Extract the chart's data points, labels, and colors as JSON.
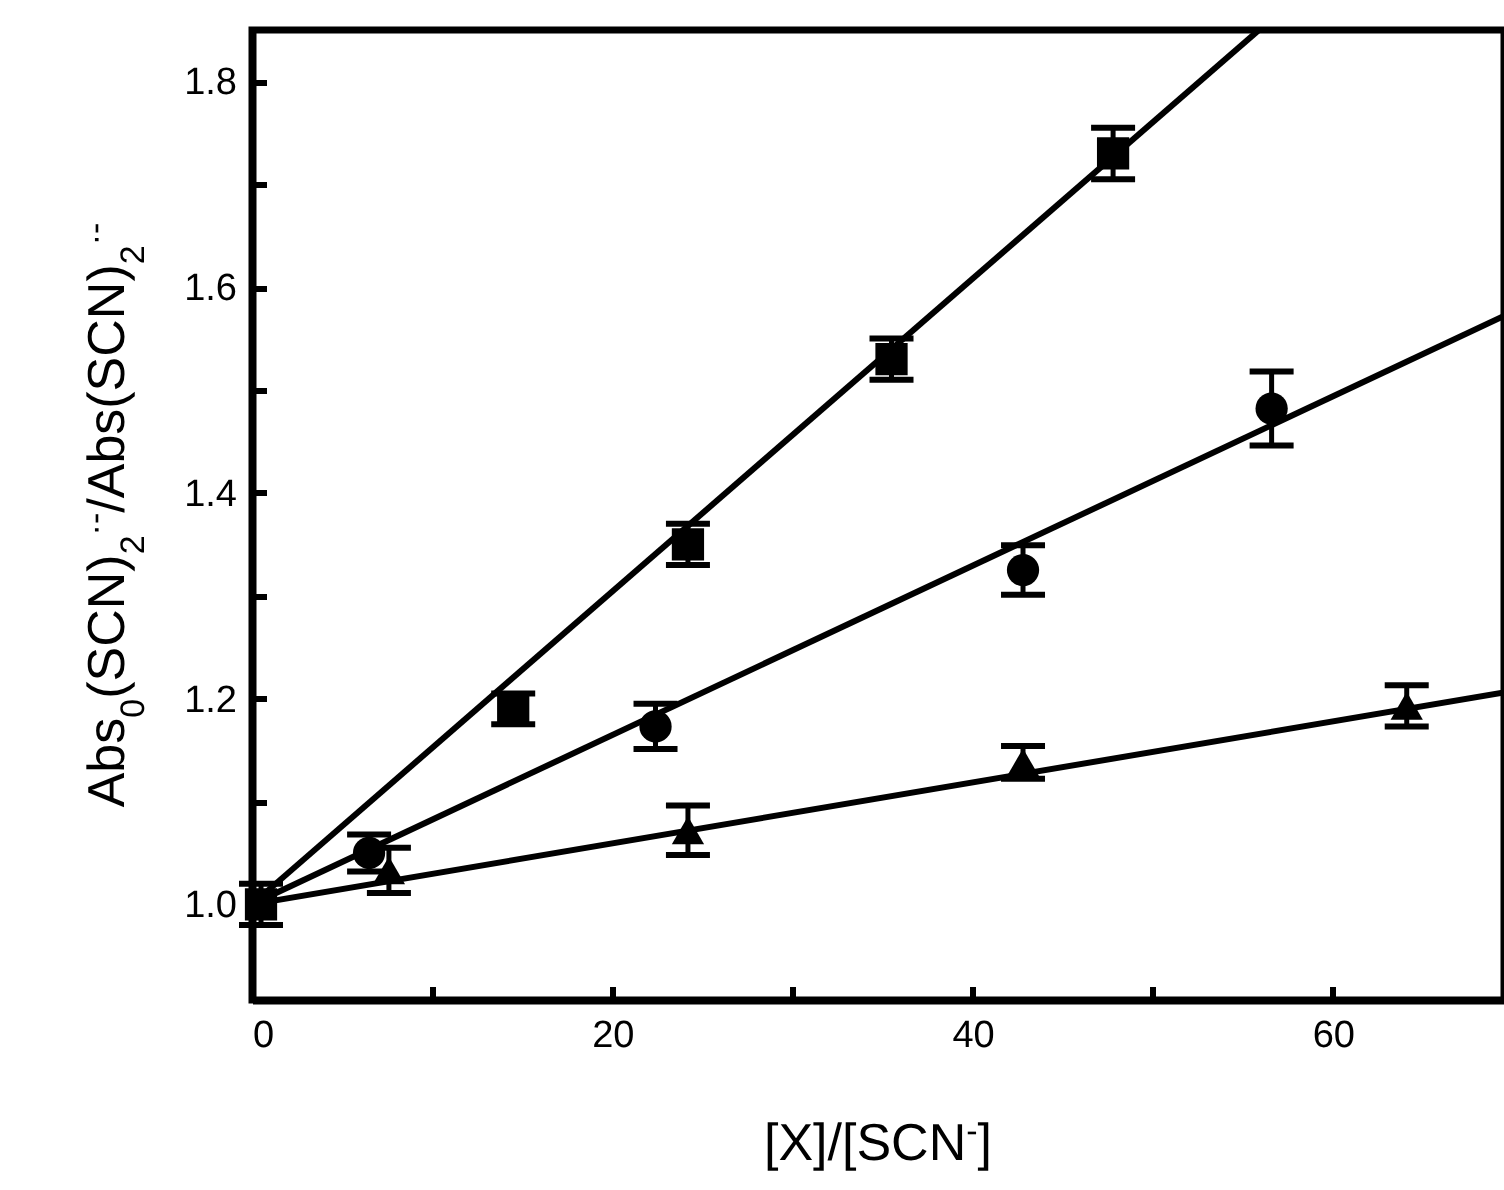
{
  "chart_data": {
    "type": "scatter",
    "xlabel": "[X]/[SCN$^{-}$]",
    "ylabel": "Abs$_{0}$(SCN)$_{2}$$^{·-}$/Abs(SCN)$_{2}$$^{·-}$",
    "xlim": [
      0,
      69.5
    ],
    "ylim": [
      0.907,
      1.85
    ],
    "xticks": [
      0,
      {
        "value": 10,
        "label": null
      },
      20,
      {
        "value": 30,
        "label": null
      },
      40,
      {
        "value": 50,
        "label": null
      },
      60
    ],
    "yticks": [
      {
        "value": 1,
        "label": "1.0"
      },
      {
        "value": 1.1,
        "label": null
      },
      {
        "value": 1.2,
        "label": "1.2"
      },
      {
        "value": 1.3,
        "label": null
      },
      {
        "value": 1.4,
        "label": "1.4"
      },
      {
        "value": 1.5,
        "label": null
      },
      {
        "value": 1.6,
        "label": "1.6"
      },
      {
        "value": 1.7,
        "label": null
      },
      {
        "value": 1.8,
        "label": "1.8"
      }
    ],
    "series": [
      {
        "marker": "square",
        "color": "#000000",
        "x": [
          0.5,
          14.5,
          24.2,
          35.5,
          47.8
        ],
        "values": [
          1.0,
          1.19,
          1.35,
          1.53,
          1.73
        ],
        "errors": [
          0.02,
          0.015,
          0.02,
          0.02,
          0.025
        ]
      },
      {
        "marker": "circle",
        "color": "#000000",
        "x": [
          6.5,
          22.4,
          42.8,
          56.6
        ],
        "values": [
          1.05,
          1.173,
          1.325,
          1.482
        ],
        "errors": [
          0.018,
          0.022,
          0.024,
          0.036
        ]
      },
      {
        "marker": "triangle",
        "color": "#000000",
        "x": [
          7.6,
          24.2,
          42.8,
          64.1
        ],
        "values": [
          1.033,
          1.072,
          1.138,
          1.193
        ],
        "errors": [
          0.022,
          0.024,
          0.016,
          0.02
        ]
      },
      {
        "type": "line",
        "color": "#000000",
        "x": [
          0,
          55.9
        ],
        "values": [
          1.0,
          1.85
        ]
      },
      {
        "type": "line",
        "color": "#000000",
        "x": [
          0,
          69.5
        ],
        "values": [
          1.0,
          1.572
        ]
      },
      {
        "type": "line",
        "color": "#000000",
        "x": [
          0,
          69.5
        ],
        "values": [
          1.0,
          1.206
        ]
      }
    ]
  }
}
